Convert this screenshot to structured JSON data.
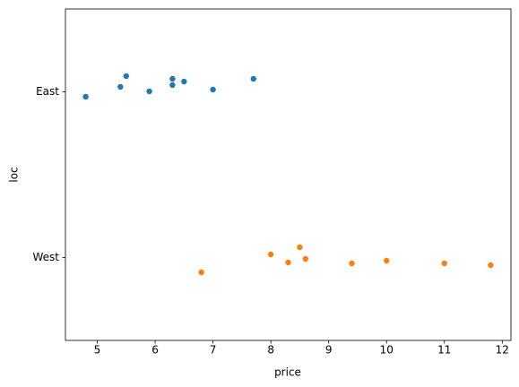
{
  "chart_data": {
    "type": "strip",
    "x_label": "price",
    "y_label": "loc",
    "categories": [
      "East",
      "West"
    ],
    "colors": [
      "#1f77b4",
      "#ff7f0e"
    ],
    "values": [
      [
        4.8,
        5.4,
        5.5,
        5.9,
        6.3,
        6.3,
        6.5,
        7.0,
        7.7
      ],
      [
        6.8,
        8.0,
        8.3,
        8.5,
        8.6,
        9.4,
        10.0,
        11.0,
        11.8
      ]
    ],
    "xlim": [
      4.45,
      12.15
    ],
    "xticks": [
      5,
      6,
      7,
      8,
      9,
      10,
      11,
      12
    ]
  }
}
